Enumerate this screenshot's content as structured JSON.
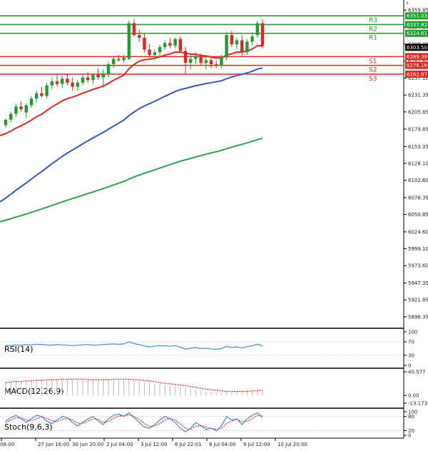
{
  "colors": {
    "bull": "#1f9e2e",
    "bear": "#e0261e",
    "ma_fast": "#e0261e",
    "ma_mid": "#3a56c4",
    "ma_slow": "#2ea44f",
    "resistance": "#1f9e2e",
    "support": "#e0261e",
    "rsi": "#3a8fe0",
    "macd_signal": "#e0261e",
    "macd_hist": "#bbbbbb",
    "stoch_k": "#3a8fe0",
    "stoch_d": "#e0261e"
  },
  "chart_data": [
    {
      "type": "candlestick",
      "panel": "price",
      "ylim": [
        5880,
        6375
      ],
      "y_ticks": [
        6359.85,
        6334.1,
        6308.35,
        6282.6,
        6257.1,
        6231.35,
        6205.85,
        6179.85,
        6153.35,
        6128.1,
        6102.6,
        6076.35,
        6050.85,
        6024.6,
        5999.1,
        5973.6,
        5947.35,
        5921.85,
        5896.35
      ],
      "x_labels": [
        "08:00",
        "27 Jun 16:00",
        "30 Jun 20:00",
        "2 Jul 04:00",
        "3 Jul 12:00",
        "6 Jul 22:01",
        "8 Jul 04:00",
        "9 Jul 12:00",
        "10 Jul 20:00"
      ],
      "last_price": "6303.50",
      "levels": [
        {
          "name": "R3",
          "value": 6351.03,
          "label": "6351.03",
          "kind": "resistance"
        },
        {
          "name": "R2",
          "value": 6337.82,
          "label": "6337.82",
          "kind": "resistance"
        },
        {
          "name": "R1",
          "value": 6324.61,
          "label": "6324.61",
          "kind": "resistance"
        },
        {
          "name": "S1",
          "value": 6289.39,
          "label": "6289.39",
          "kind": "support"
        },
        {
          "name": "S2",
          "value": 6276.18,
          "label": "6276.18",
          "kind": "support"
        },
        {
          "name": "S3",
          "value": 6262.97,
          "label": "6262.97",
          "kind": "support"
        }
      ],
      "candles": [
        [
          6186,
          6196,
          6182,
          6194
        ],
        [
          6194,
          6206,
          6190,
          6203
        ],
        [
          6203,
          6218,
          6198,
          6214
        ],
        [
          6214,
          6222,
          6206,
          6210
        ],
        [
          6205,
          6219,
          6196,
          6216
        ],
        [
          6216,
          6230,
          6212,
          6226
        ],
        [
          6226,
          6238,
          6220,
          6234
        ],
        [
          6234,
          6244,
          6228,
          6230
        ],
        [
          6230,
          6250,
          6226,
          6246
        ],
        [
          6246,
          6258,
          6240,
          6252
        ],
        [
          6252,
          6262,
          6244,
          6248
        ],
        [
          6248,
          6260,
          6242,
          6256
        ],
        [
          6256,
          6264,
          6246,
          6250
        ],
        [
          6250,
          6258,
          6238,
          6244
        ],
        [
          6244,
          6254,
          6238,
          6250
        ],
        [
          6250,
          6262,
          6246,
          6258
        ],
        [
          6258,
          6266,
          6250,
          6254
        ],
        [
          6254,
          6264,
          6248,
          6262
        ],
        [
          6262,
          6272,
          6254,
          6258
        ],
        [
          6258,
          6270,
          6242,
          6264
        ],
        [
          6264,
          6282,
          6258,
          6278
        ],
        [
          6278,
          6290,
          6272,
          6286
        ],
        [
          6286,
          6292,
          6282,
          6284
        ],
        [
          6284,
          6292,
          6280,
          6288
        ],
        [
          6286,
          6344,
          6284,
          6340
        ],
        [
          6340,
          6346,
          6320,
          6322
        ],
        [
          6322,
          6330,
          6312,
          6318
        ],
        [
          6318,
          6324,
          6296,
          6300
        ],
        [
          6300,
          6308,
          6288,
          6292
        ],
        [
          6292,
          6300,
          6284,
          6296
        ],
        [
          6296,
          6308,
          6290,
          6304
        ],
        [
          6304,
          6314,
          6300,
          6310
        ],
        [
          6310,
          6318,
          6302,
          6306
        ],
        [
          6306,
          6318,
          6302,
          6316
        ],
        [
          6316,
          6320,
          6296,
          6298
        ],
        [
          6298,
          6304,
          6262,
          6280
        ],
        [
          6280,
          6294,
          6270,
          6286
        ],
        [
          6286,
          6296,
          6278,
          6290
        ],
        [
          6290,
          6294,
          6276,
          6280
        ],
        [
          6280,
          6290,
          6270,
          6284
        ],
        [
          6284,
          6290,
          6272,
          6278
        ],
        [
          6278,
          6284,
          6272,
          6276
        ],
        [
          6276,
          6292,
          6272,
          6288
        ],
        [
          6288,
          6326,
          6284,
          6322
        ],
        [
          6322,
          6328,
          6304,
          6308
        ],
        [
          6308,
          6318,
          6300,
          6314
        ],
        [
          6314,
          6322,
          6290,
          6296
        ],
        [
          6296,
          6316,
          6292,
          6312
        ],
        [
          6312,
          6326,
          6306,
          6320
        ],
        [
          6322,
          6344,
          6318,
          6340
        ],
        [
          6340,
          6346,
          6302,
          6306
        ]
      ]
    },
    {
      "type": "line",
      "panel": "rsi",
      "title": "RSI(14)",
      "ylim": [
        0,
        100
      ],
      "y_ticks": [
        100,
        70,
        30,
        0
      ],
      "values": [
        60,
        59,
        61,
        60,
        62,
        61,
        63,
        62,
        61,
        60,
        62,
        61,
        60,
        59,
        60,
        61,
        62,
        60,
        61,
        62,
        63,
        64,
        63,
        64,
        70,
        65,
        62,
        58,
        55,
        57,
        59,
        58,
        57,
        59,
        54,
        48,
        51,
        53,
        50,
        51,
        49,
        48,
        50,
        57,
        53,
        55,
        52,
        56,
        58,
        63,
        58
      ]
    },
    {
      "type": "line+bar",
      "panel": "macd",
      "title": "MACD(12,26,9)",
      "ylim": [
        -13.173,
        40.577
      ],
      "y_ticks": [
        "40.577",
        "0.00",
        "-13.173"
      ],
      "hist": [
        24,
        24,
        25,
        25,
        26,
        26,
        27,
        27,
        27,
        27,
        28,
        28,
        28,
        28,
        27,
        27,
        27,
        27,
        27,
        27,
        28,
        28,
        28,
        27,
        27,
        26,
        25,
        24,
        22,
        20,
        19,
        18,
        17,
        16,
        14,
        12,
        11,
        10,
        8,
        7,
        6,
        5,
        5,
        6,
        6,
        7,
        7,
        8,
        8,
        9,
        9
      ],
      "signal": [
        22,
        23,
        24,
        24,
        25,
        25,
        26,
        26,
        27,
        27,
        27,
        28,
        28,
        28,
        28,
        28,
        27,
        27,
        27,
        27,
        27,
        28,
        28,
        28,
        28,
        27,
        27,
        26,
        25,
        24,
        22,
        21,
        20,
        19,
        18,
        17,
        15,
        14,
        12,
        11,
        10,
        9,
        8,
        7,
        7,
        7,
        7,
        7,
        8,
        8,
        9
      ]
    },
    {
      "type": "line",
      "panel": "stoch",
      "title": "Stoch(9,6,3)",
      "ylim": [
        0,
        100
      ],
      "y_ticks": [
        100,
        80,
        20,
        0
      ],
      "k": [
        60,
        75,
        85,
        70,
        55,
        70,
        85,
        80,
        60,
        50,
        65,
        80,
        75,
        55,
        40,
        55,
        70,
        80,
        60,
        45,
        70,
        85,
        90,
        80,
        95,
        75,
        55,
        35,
        30,
        45,
        65,
        80,
        70,
        55,
        30,
        15,
        30,
        55,
        40,
        25,
        30,
        20,
        40,
        80,
        65,
        70,
        45,
        70,
        85,
        95,
        75
      ],
      "d": [
        55,
        65,
        75,
        75,
        65,
        62,
        70,
        78,
        72,
        62,
        58,
        68,
        72,
        65,
        52,
        50,
        60,
        70,
        68,
        55,
        58,
        72,
        82,
        82,
        88,
        80,
        68,
        50,
        38,
        40,
        50,
        65,
        72,
        65,
        48,
        30,
        25,
        38,
        42,
        35,
        30,
        25,
        30,
        50,
        60,
        68,
        58,
        60,
        70,
        85,
        82
      ]
    }
  ]
}
